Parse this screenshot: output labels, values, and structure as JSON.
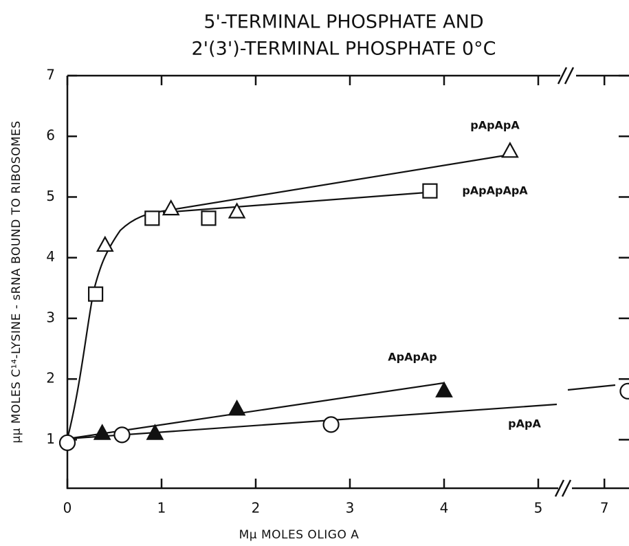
{
  "chart_data": {
    "type": "scatter",
    "title": [
      "5'-TERMINAL PHOSPHATE AND",
      "2'(3')-TERMINAL PHOSPHATE 0°C"
    ],
    "x_label": "Mμ MOLES OLIGO A",
    "y_label": "μμ MOLES C¹⁴-LYSINE - sRNA BOUND TO RIBOSOMES",
    "xlim": [
      0,
      7.35
    ],
    "xbreak": [
      5.3,
      6.7
    ],
    "xticks": [
      0,
      1,
      2,
      3,
      4,
      5,
      7
    ],
    "ylim": [
      0.2,
      7
    ],
    "yticks": [
      1,
      2,
      3,
      4,
      5,
      6,
      7
    ],
    "series": [
      {
        "name": "pApApA",
        "marker": "triangle-open",
        "color": "#111",
        "x": [
          0.4,
          1.1,
          1.8,
          4.7
        ],
        "values": [
          4.2,
          4.8,
          4.75,
          5.75
        ]
      },
      {
        "name": "pApApApA",
        "marker": "square-open",
        "color": "#111",
        "x": [
          0.3,
          0.9,
          1.5,
          3.85
        ],
        "values": [
          3.4,
          4.65,
          4.65,
          5.1
        ]
      },
      {
        "name": "ApApAp",
        "marker": "triangle-filled",
        "color": "#111",
        "x": [
          0.37,
          0.93,
          1.8,
          4.0
        ],
        "values": [
          1.1,
          1.1,
          1.5,
          1.8
        ]
      },
      {
        "name": "pApA",
        "marker": "circle-open",
        "color": "#111",
        "x": [
          0,
          0.58,
          2.8,
          7.25
        ],
        "values": [
          0.95,
          1.08,
          1.25,
          1.8
        ]
      }
    ]
  }
}
